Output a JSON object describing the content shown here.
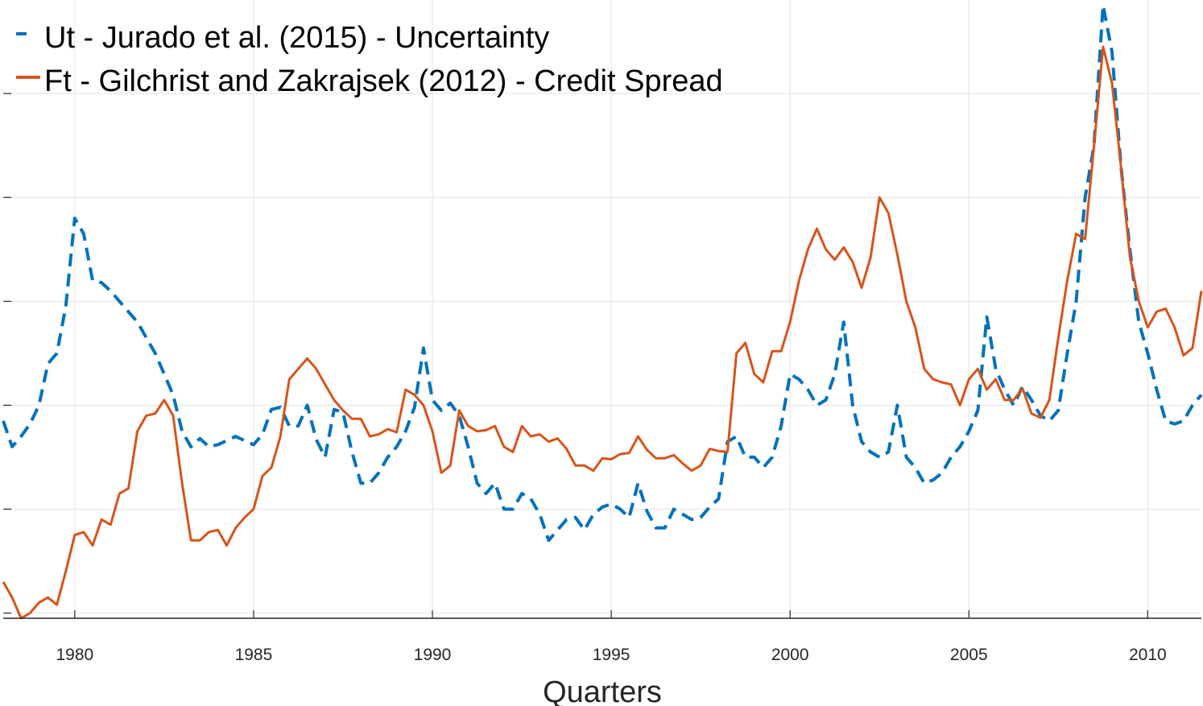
{
  "chart_data": {
    "type": "line",
    "xlabel": "Quarters",
    "ylabel": "",
    "xlim": [
      1978,
      2011.5
    ],
    "ylim": [
      -1.55,
      4.4
    ],
    "x_ticks": [
      1980,
      1985,
      1990,
      1995,
      2000,
      2005,
      2010
    ],
    "y_ticks": [
      -1.5,
      -0.5,
      0.5,
      1.5,
      2.5,
      3.5
    ],
    "y_tick_labels_shown": false,
    "grid": true,
    "legend_position": "top-left",
    "series": [
      {
        "name": "Ut - Jurado et al. (2015) - Uncertainty",
        "style": "dashed",
        "color": "#0072BD",
        "x": [
          1978.0,
          1978.25,
          1978.5,
          1978.75,
          1979.0,
          1979.25,
          1979.5,
          1979.75,
          1980.0,
          1980.25,
          1980.5,
          1980.75,
          1981.0,
          1981.25,
          1981.5,
          1981.75,
          1982.0,
          1982.25,
          1982.5,
          1982.75,
          1983.0,
          1983.25,
          1983.5,
          1983.75,
          1984.0,
          1984.25,
          1984.5,
          1984.75,
          1985.0,
          1985.25,
          1985.5,
          1985.75,
          1986.0,
          1986.25,
          1986.5,
          1986.75,
          1987.0,
          1987.25,
          1987.5,
          1987.75,
          1988.0,
          1988.25,
          1988.5,
          1988.75,
          1989.0,
          1989.25,
          1989.5,
          1989.75,
          1990.0,
          1990.25,
          1990.5,
          1990.75,
          1991.0,
          1991.25,
          1991.5,
          1991.75,
          1992.0,
          1992.25,
          1992.5,
          1992.75,
          1993.0,
          1993.25,
          1993.5,
          1993.75,
          1994.0,
          1994.25,
          1994.5,
          1994.75,
          1995.0,
          1995.25,
          1995.5,
          1995.75,
          1996.0,
          1996.25,
          1996.5,
          1996.75,
          1997.0,
          1997.25,
          1997.5,
          1997.75,
          1998.0,
          1998.25,
          1998.5,
          1998.75,
          1999.0,
          1999.25,
          1999.5,
          1999.75,
          2000.0,
          2000.25,
          2000.5,
          2000.75,
          2001.0,
          2001.25,
          2001.5,
          2001.75,
          2002.0,
          2002.25,
          2002.5,
          2002.75,
          2003.0,
          2003.25,
          2003.5,
          2003.75,
          2004.0,
          2004.25,
          2004.5,
          2004.75,
          2005.0,
          2005.25,
          2005.5,
          2005.75,
          2006.0,
          2006.25,
          2006.5,
          2006.75,
          2007.0,
          2007.25,
          2007.5,
          2007.75,
          2008.0,
          2008.25,
          2008.5,
          2008.75,
          2009.0,
          2009.25,
          2009.5,
          2009.75,
          2010.0,
          2010.25,
          2010.5,
          2010.75,
          2011.0,
          2011.25,
          2011.5
        ],
        "values": [
          0.35,
          0.1,
          0.2,
          0.32,
          0.5,
          0.9,
          1.0,
          1.45,
          2.3,
          2.15,
          1.7,
          1.68,
          1.6,
          1.5,
          1.4,
          1.3,
          1.15,
          1.0,
          0.8,
          0.6,
          0.25,
          0.1,
          0.18,
          0.1,
          0.12,
          0.16,
          0.2,
          0.16,
          0.12,
          0.22,
          0.46,
          0.48,
          0.3,
          0.3,
          0.5,
          0.17,
          0.0,
          0.46,
          0.43,
          0.05,
          -0.25,
          -0.25,
          -0.15,
          0.0,
          0.1,
          0.25,
          0.48,
          1.05,
          0.55,
          0.45,
          0.52,
          0.4,
          0.1,
          -0.25,
          -0.35,
          -0.25,
          -0.5,
          -0.5,
          -0.35,
          -0.4,
          -0.55,
          -0.8,
          -0.7,
          -0.6,
          -0.58,
          -0.7,
          -0.55,
          -0.48,
          -0.45,
          -0.5,
          -0.58,
          -0.25,
          -0.52,
          -0.68,
          -0.68,
          -0.5,
          -0.55,
          -0.6,
          -0.58,
          -0.48,
          -0.4,
          0.15,
          0.2,
          0.0,
          0.0,
          -0.1,
          0.0,
          0.3,
          0.8,
          0.75,
          0.65,
          0.5,
          0.55,
          0.8,
          1.3,
          0.5,
          0.15,
          0.05,
          0.0,
          0.05,
          0.5,
          0.0,
          -0.1,
          -0.25,
          -0.22,
          -0.15,
          0.0,
          0.1,
          0.25,
          0.45,
          1.35,
          0.85,
          0.65,
          0.5,
          0.68,
          0.55,
          0.4,
          0.35,
          0.45,
          1.0,
          1.5,
          2.5,
          3.0,
          4.35,
          3.9,
          2.8,
          2.0,
          1.3,
          1.0,
          0.65,
          0.35,
          0.32,
          0.35,
          0.5,
          0.6
        ]
      },
      {
        "name": "Ft - Gilchrist and Zakrajsek (2012) - Credit Spread",
        "style": "solid",
        "color": "#D95319",
        "x": [
          1978.0,
          1978.25,
          1978.5,
          1978.75,
          1979.0,
          1979.25,
          1979.5,
          1979.75,
          1980.0,
          1980.25,
          1980.5,
          1980.75,
          1981.0,
          1981.25,
          1981.5,
          1981.75,
          1982.0,
          1982.25,
          1982.5,
          1982.75,
          1983.0,
          1983.25,
          1983.5,
          1983.75,
          1984.0,
          1984.25,
          1984.5,
          1984.75,
          1985.0,
          1985.25,
          1985.5,
          1985.75,
          1986.0,
          1986.25,
          1986.5,
          1986.75,
          1987.0,
          1987.25,
          1987.5,
          1987.75,
          1988.0,
          1988.25,
          1988.5,
          1988.75,
          1989.0,
          1989.25,
          1989.5,
          1989.75,
          1990.0,
          1990.25,
          1990.5,
          1990.75,
          1991.0,
          1991.25,
          1991.5,
          1991.75,
          1992.0,
          1992.25,
          1992.5,
          1992.75,
          1993.0,
          1993.25,
          1993.5,
          1993.75,
          1994.0,
          1994.25,
          1994.5,
          1994.75,
          1995.0,
          1995.25,
          1995.5,
          1995.75,
          1996.0,
          1996.25,
          1996.5,
          1996.75,
          1997.0,
          1997.25,
          1997.5,
          1997.75,
          1998.0,
          1998.25,
          1998.5,
          1998.75,
          1999.0,
          1999.25,
          1999.5,
          1999.75,
          2000.0,
          2000.25,
          2000.5,
          2000.75,
          2001.0,
          2001.25,
          2001.5,
          2001.75,
          2002.0,
          2002.25,
          2002.5,
          2002.75,
          2003.0,
          2003.25,
          2003.5,
          2003.75,
          2004.0,
          2004.25,
          2004.5,
          2004.75,
          2005.0,
          2005.25,
          2005.5,
          2005.75,
          2006.0,
          2006.25,
          2006.5,
          2006.75,
          2007.0,
          2007.25,
          2007.5,
          2007.75,
          2008.0,
          2008.25,
          2008.5,
          2008.75,
          2009.0,
          2009.25,
          2009.5,
          2009.75,
          2010.0,
          2010.25,
          2010.5,
          2010.75,
          2011.0,
          2011.25,
          2011.5
        ],
        "values": [
          -1.2,
          -1.35,
          -1.55,
          -1.5,
          -1.4,
          -1.35,
          -1.42,
          -1.1,
          -0.75,
          -0.72,
          -0.85,
          -0.6,
          -0.65,
          -0.35,
          -0.3,
          0.25,
          0.4,
          0.42,
          0.55,
          0.4,
          -0.25,
          -0.8,
          -0.8,
          -0.72,
          -0.7,
          -0.85,
          -0.68,
          -0.58,
          -0.5,
          -0.18,
          -0.1,
          0.2,
          0.75,
          0.85,
          0.95,
          0.85,
          0.7,
          0.55,
          0.45,
          0.37,
          0.37,
          0.2,
          0.22,
          0.27,
          0.24,
          0.65,
          0.6,
          0.5,
          0.25,
          -0.15,
          -0.08,
          0.45,
          0.3,
          0.25,
          0.26,
          0.3,
          0.1,
          0.05,
          0.3,
          0.2,
          0.22,
          0.15,
          0.18,
          0.08,
          -0.08,
          -0.08,
          -0.13,
          -0.01,
          -0.02,
          0.03,
          0.04,
          0.2,
          0.07,
          -0.01,
          -0.01,
          0.02,
          -0.06,
          -0.13,
          -0.08,
          0.08,
          0.06,
          0.05,
          1.0,
          1.1,
          0.8,
          0.72,
          1.02,
          1.02,
          1.3,
          1.7,
          2.0,
          2.2,
          2.0,
          1.9,
          2.02,
          1.88,
          1.63,
          1.92,
          2.5,
          2.35,
          1.95,
          1.5,
          1.25,
          0.85,
          0.75,
          0.72,
          0.7,
          0.5,
          0.75,
          0.85,
          0.65,
          0.75,
          0.55,
          0.55,
          0.66,
          0.42,
          0.38,
          0.55,
          1.15,
          1.7,
          2.15,
          2.1,
          3.0,
          3.95,
          3.6,
          2.8,
          1.93,
          1.5,
          1.25,
          1.4,
          1.43,
          1.25,
          0.98,
          1.05,
          1.6
        ]
      }
    ]
  }
}
